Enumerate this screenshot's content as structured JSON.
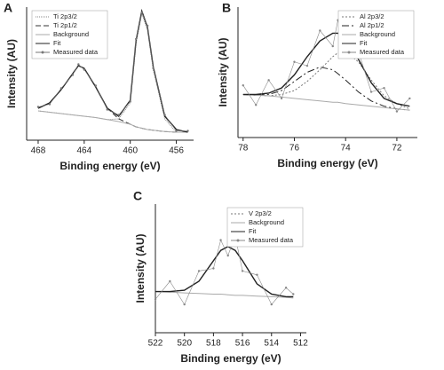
{
  "chart_data": [
    {
      "type": "line",
      "label": "A",
      "xlabel": "Binding energy (eV)",
      "ylabel": "Intensity (AU)",
      "xlim": [
        469,
        454.5
      ],
      "xticks": [
        468,
        464,
        460,
        456
      ],
      "ylim": [
        0,
        100
      ],
      "legend": "upper-left",
      "x": [
        468,
        467,
        466,
        465,
        464.5,
        464,
        463,
        462,
        461,
        460,
        459.5,
        459,
        458.5,
        458,
        457,
        456,
        455
      ],
      "series": [
        {
          "name": "Ti 2p3/2",
          "color": "#888888",
          "dash": "1 1",
          "values": [
            22,
            21,
            20,
            19,
            18.5,
            18,
            17,
            15.5,
            16,
            28,
            73,
            95,
            83,
            53,
            16,
            6,
            6
          ]
        },
        {
          "name": "Ti 2p1/2",
          "color": "#333333",
          "dash": "6 3",
          "values": [
            24,
            28,
            38,
            50,
            56,
            54,
            40,
            24,
            16,
            12,
            10,
            9,
            8,
            7.5,
            6.5,
            6,
            6
          ]
        },
        {
          "name": "Background",
          "color": "#aaaaaa",
          "values": [
            22,
            21,
            20,
            19,
            18.5,
            18,
            17,
            15.5,
            14,
            12,
            10,
            9,
            8,
            7.5,
            6.5,
            6,
            6
          ]
        },
        {
          "name": "Fit",
          "color": "#222222",
          "values": [
            24,
            28,
            38,
            50,
            56,
            54,
            40,
            24,
            18,
            30,
            75,
            97,
            85,
            55,
            18,
            8,
            6
          ]
        },
        {
          "name": "Measured data",
          "color": "#777777",
          "marker": true,
          "values": [
            25,
            27,
            39,
            49,
            57,
            53,
            41,
            23,
            19,
            29,
            76,
            96,
            86,
            54,
            19,
            7,
            7
          ]
        }
      ]
    },
    {
      "type": "line",
      "label": "B",
      "xlabel": "Binding energy (eV)",
      "ylabel": "Intensity (AU)",
      "xlim": [
        78.2,
        71.2
      ],
      "xticks": [
        78,
        76,
        74,
        72
      ],
      "ylim": [
        0,
        100
      ],
      "legend": "upper-right",
      "x": [
        78,
        77.5,
        77,
        76.5,
        76,
        75.5,
        75,
        74.5,
        74.3,
        74,
        73.5,
        73,
        72.5,
        72,
        71.5
      ],
      "series": [
        {
          "name": "Al 2p3/2",
          "color": "#777777",
          "dash": "2 2",
          "values": [
            33,
            32.5,
            32,
            33,
            36,
            43,
            52,
            62,
            65,
            66,
            58,
            44,
            32,
            26,
            22
          ]
        },
        {
          "name": "Al 2p1/2",
          "color": "#222222",
          "dash": "8 3 2 3",
          "values": [
            33,
            32.5,
            33,
            36,
            43,
            50,
            54,
            52,
            49,
            44,
            35,
            28,
            24,
            22,
            21
          ]
        },
        {
          "name": "Background",
          "color": "#aaaaaa",
          "values": [
            33,
            32.5,
            32,
            31,
            30,
            29,
            28,
            27,
            27,
            26,
            25,
            24,
            23,
            22,
            21
          ]
        },
        {
          "name": "Fit",
          "color": "#222222",
          "values": [
            33,
            33,
            34,
            38,
            48,
            62,
            74,
            80,
            80,
            76,
            60,
            42,
            30,
            26,
            24
          ]
        },
        {
          "name": "Measured data",
          "color": "#888888",
          "marker": true,
          "values": [
            40,
            25,
            44,
            30,
            58,
            55,
            82,
            70,
            90,
            68,
            66,
            35,
            38,
            20,
            30
          ]
        }
      ]
    },
    {
      "type": "line",
      "label": "C",
      "xlabel": "Binding energy (eV)",
      "ylabel": "Intensity (AU)",
      "xlim": [
        522,
        511.6
      ],
      "xticks": [
        522,
        520,
        518,
        516,
        514,
        512
      ],
      "ylim": [
        0,
        100
      ],
      "legend": "upper-right",
      "x": [
        522,
        521,
        520,
        519,
        518,
        517.5,
        517,
        516.5,
        516,
        515,
        514,
        513,
        512.5
      ],
      "series": [
        {
          "name": "V 2p3/2",
          "color": "#777777",
          "dash": "2 2",
          "values": [
            32,
            32,
            33,
            40,
            56,
            64,
            67,
            64,
            56,
            38,
            30,
            28,
            28
          ]
        },
        {
          "name": "Background",
          "color": "#aaaaaa",
          "values": [
            32,
            31.5,
            31,
            30.5,
            30,
            30,
            29.5,
            29,
            29,
            28.5,
            28,
            27.5,
            27
          ]
        },
        {
          "name": "Fit",
          "color": "#222222",
          "values": [
            32,
            32,
            33,
            40,
            56,
            64,
            67,
            64,
            56,
            38,
            30,
            28,
            28
          ]
        },
        {
          "name": "Measured data",
          "color": "#888888",
          "marker": true,
          "values": [
            26,
            40,
            22,
            48,
            50,
            72,
            60,
            75,
            48,
            45,
            22,
            35,
            30
          ]
        }
      ]
    }
  ]
}
